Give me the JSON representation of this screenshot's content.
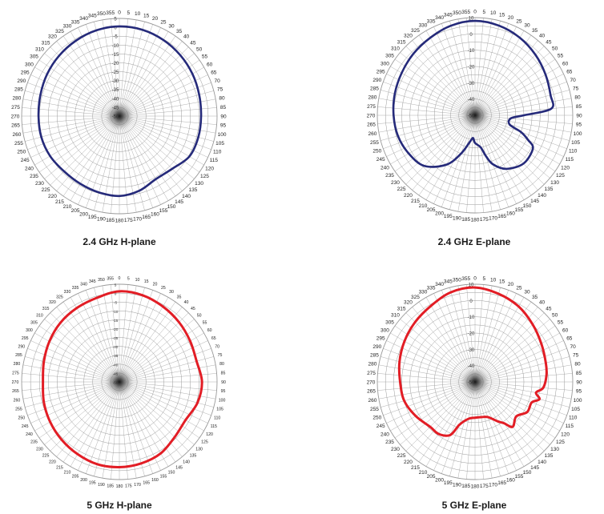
{
  "colors": {
    "h24": "#252a7a",
    "h5": "#e21d25",
    "grid": "#9a9a9a"
  },
  "chart_data": [
    {
      "type": "polar-line",
      "title": "2.4 GHz H-plane",
      "angle_ticks": [
        "0",
        "5",
        "10",
        "15",
        "20",
        "25",
        "30",
        "35",
        "40",
        "45",
        "50",
        "55",
        "60",
        "65",
        "70",
        "75",
        "80",
        "85",
        "90",
        "95",
        "100",
        "105",
        "110",
        "115",
        "120",
        "125",
        "130",
        "135",
        "140",
        "145",
        "150",
        "155",
        "160",
        "165",
        "170",
        "175",
        "180",
        "185",
        "190",
        "195",
        "200",
        "205",
        "210",
        "215",
        "220",
        "225",
        "230",
        "235",
        "240",
        "245",
        "250",
        "255",
        "260",
        "265",
        "270",
        "275",
        "280",
        "285",
        "290",
        "295",
        "300",
        "305",
        "310",
        "315",
        "320",
        "325",
        "330",
        "335",
        "340",
        "345",
        "350",
        "355"
      ],
      "radial_ticks": [
        "5",
        "0",
        "-5",
        "-10",
        "-15",
        "-20",
        "-25",
        "-30",
        "-35",
        "-40",
        "-45",
        "-50"
      ],
      "rlim": [
        -50,
        5
      ],
      "series": [
        {
          "color": "#252a7a",
          "angles": [
            0,
            15,
            30,
            45,
            60,
            75,
            90,
            105,
            120,
            135,
            150,
            165,
            180,
            195,
            210,
            225,
            240,
            255,
            270,
            285,
            300,
            315,
            330,
            345,
            360
          ],
          "values": [
            0.5,
            0.3,
            -0.5,
            -1.5,
            -2.5,
            -3.5,
            -4.0,
            -4.0,
            -4.5,
            -8.0,
            -9.0,
            -6.5,
            -5.0,
            -5.5,
            -6.0,
            -6.0,
            -5.0,
            -4.5,
            -4.5,
            -4.0,
            -3.0,
            -2.0,
            -1.0,
            0.0,
            0.5
          ]
        }
      ]
    },
    {
      "type": "polar-line",
      "title": "2.4 GHz E-plane",
      "angle_ticks": [
        "0",
        "5",
        "10",
        "15",
        "20",
        "25",
        "30",
        "35",
        "40",
        "45",
        "50",
        "55",
        "60",
        "65",
        "70",
        "75",
        "80",
        "85",
        "90",
        "95",
        "100",
        "105",
        "110",
        "115",
        "120",
        "125",
        "130",
        "135",
        "140",
        "145",
        "150",
        "155",
        "160",
        "165",
        "170",
        "175",
        "180",
        "185",
        "190",
        "195",
        "200",
        "205",
        "210",
        "215",
        "220",
        "225",
        "230",
        "235",
        "240",
        "245",
        "250",
        "255",
        "260",
        "265",
        "270",
        "275",
        "280",
        "285",
        "290",
        "295",
        "300",
        "305",
        "310",
        "315",
        "320",
        "325",
        "330",
        "335",
        "340",
        "345",
        "350",
        "355"
      ],
      "radial_ticks": [
        "10",
        "0",
        "-10",
        "-20",
        "-30",
        "-40",
        "-50"
      ],
      "rlim": [
        -50,
        10
      ],
      "series": [
        {
          "color": "#252a7a",
          "angles": [
            0,
            15,
            30,
            45,
            60,
            75,
            85,
            90,
            95,
            105,
            110,
            115,
            120,
            135,
            150,
            160,
            165,
            170,
            180,
            185,
            190,
            200,
            210,
            225,
            240,
            255,
            270,
            285,
            300,
            315,
            330,
            345,
            360
          ],
          "values": [
            8.0,
            7.0,
            5.0,
            2.5,
            0.0,
            -2.0,
            -3.0,
            -20.0,
            -28.0,
            -28.0,
            -20.0,
            -14.0,
            -9.0,
            -8.0,
            -12.0,
            -18.0,
            -24.0,
            -30.0,
            -33.0,
            -36.0,
            -34.0,
            -25.0,
            -15.0,
            -6.0,
            -3.0,
            -1.0,
            0.0,
            1.0,
            2.0,
            3.5,
            5.0,
            7.0,
            8.0
          ]
        }
      ]
    },
    {
      "type": "polar-line",
      "title": "5 GHz H-plane",
      "angle_ticks": [
        "0",
        "5",
        "10",
        "15",
        "20",
        "25",
        "30",
        "35",
        "40",
        "45",
        "50",
        "55",
        "60",
        "65",
        "70",
        "75",
        "80",
        "85",
        "90",
        "95",
        "100",
        "105",
        "110",
        "115",
        "120",
        "125",
        "130",
        "135",
        "140",
        "145",
        "150",
        "155",
        "160",
        "165",
        "170",
        "175",
        "180",
        "185",
        "190",
        "195",
        "200",
        "205",
        "210",
        "215",
        "220",
        "225",
        "230",
        "235",
        "240",
        "245",
        "250",
        "255",
        "260",
        "265",
        "270",
        "275",
        "280",
        "285",
        "290",
        "295",
        "300",
        "305",
        "310",
        "315",
        "320",
        "325",
        "330",
        "335",
        "340",
        "345",
        "350",
        "355"
      ],
      "radial_ticks": [
        "5",
        "0",
        "-5",
        "-10",
        "-15",
        "-20",
        "-25",
        "-30",
        "-35",
        "-40",
        "-45",
        "-50"
      ],
      "rlim": [
        -50,
        5
      ],
      "series": [
        {
          "color": "#e21d25",
          "angles": [
            0,
            15,
            30,
            45,
            60,
            75,
            90,
            105,
            120,
            135,
            150,
            165,
            180,
            195,
            210,
            225,
            240,
            255,
            270,
            285,
            300,
            315,
            330,
            345,
            360
          ],
          "values": [
            1.0,
            0.5,
            -1.0,
            -2.5,
            -4.0,
            -5.0,
            -3.5,
            -4.5,
            -7.0,
            -6.0,
            -3.5,
            -2.5,
            -2.0,
            -2.0,
            -3.0,
            -4.0,
            -5.0,
            -6.0,
            -7.0,
            -6.0,
            -4.5,
            -3.0,
            -2.0,
            -1.0,
            1.0
          ]
        }
      ]
    },
    {
      "type": "polar-line",
      "title": "5 GHz E-plane",
      "angle_ticks": [
        "0",
        "5",
        "10",
        "15",
        "20",
        "25",
        "30",
        "35",
        "40",
        "45",
        "50",
        "55",
        "60",
        "65",
        "70",
        "75",
        "80",
        "85",
        "90",
        "95",
        "100",
        "105",
        "110",
        "115",
        "120",
        "125",
        "130",
        "135",
        "140",
        "145",
        "150",
        "155",
        "160",
        "165",
        "170",
        "175",
        "180",
        "185",
        "190",
        "195",
        "200",
        "205",
        "210",
        "215",
        "220",
        "225",
        "230",
        "235",
        "240",
        "245",
        "250",
        "255",
        "260",
        "265",
        "270",
        "275",
        "280",
        "285",
        "290",
        "295",
        "300",
        "305",
        "310",
        "315",
        "320",
        "325",
        "330",
        "335",
        "340",
        "345",
        "350",
        "355"
      ],
      "radial_ticks": [
        "10",
        "0",
        "-10",
        "-20",
        "-30",
        "-40",
        "-50"
      ],
      "rlim": [
        -50,
        10
      ],
      "series": [
        {
          "color": "#e21d25",
          "angles": [
            0,
            15,
            30,
            45,
            60,
            75,
            85,
            95,
            100,
            105,
            110,
            120,
            130,
            140,
            145,
            150,
            160,
            170,
            180,
            190,
            200,
            205,
            215,
            225,
            240,
            255,
            270,
            285,
            300,
            315,
            330,
            345,
            360
          ],
          "values": [
            8.0,
            6.0,
            3.5,
            0.0,
            -3.0,
            -5.0,
            -6.0,
            -8.0,
            -12.0,
            -9.0,
            -13.0,
            -13.0,
            -17.0,
            -14.0,
            -19.0,
            -22.0,
            -27.0,
            -28.0,
            -28.0,
            -27.0,
            -22.0,
            -14.0,
            -11.0,
            -11.0,
            -8.0,
            -5.0,
            -4.0,
            -2.0,
            0.0,
            2.0,
            4.0,
            7.0,
            8.0
          ]
        }
      ]
    }
  ]
}
